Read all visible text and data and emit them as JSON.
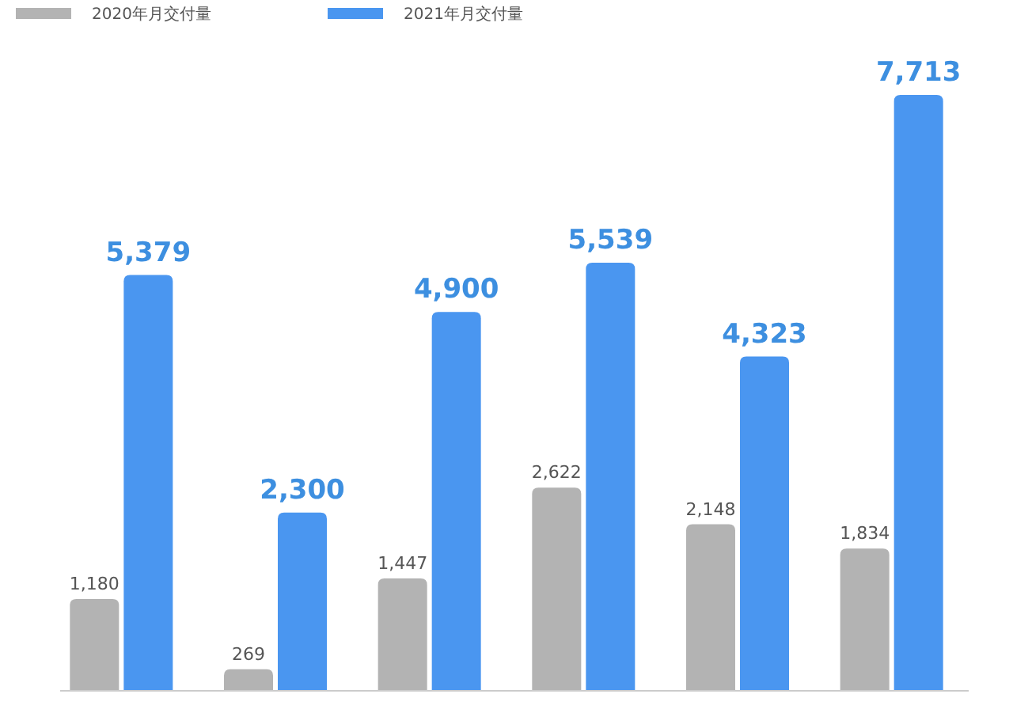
{
  "chart_data": {
    "type": "bar",
    "categories": [
      null,
      null,
      null,
      null,
      null,
      null
    ],
    "series": [
      {
        "name": "2020年月交付量",
        "color": "#b3b3b3",
        "values": [
          1180,
          269,
          1447,
          2622,
          2148,
          1834
        ],
        "value_labels": [
          "1,180",
          "269",
          "1,447",
          "2,622",
          "2,148",
          "1,834"
        ]
      },
      {
        "name": "2021年月交付量",
        "color": "#4a96f0",
        "values": [
          5379,
          2300,
          4900,
          5539,
          4323,
          7713
        ],
        "value_labels": [
          "5,379",
          "2,300",
          "4,900",
          "5,539",
          "4,323",
          "7,713"
        ]
      }
    ],
    "legend": "top left"
  }
}
